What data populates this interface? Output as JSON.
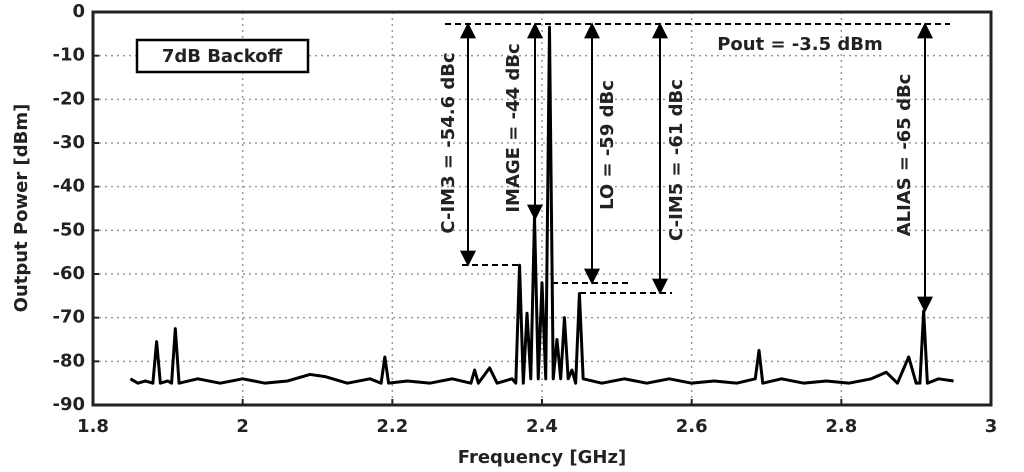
{
  "chart_data": {
    "type": "line",
    "x_label": "Frequency [GHz]",
    "y_label": "Output Power [dBm]",
    "xlim": [
      1.8,
      3
    ],
    "xticks": [
      1.8,
      2,
      2.2,
      2.4,
      2.6,
      2.8,
      3
    ],
    "ylim": [
      -90,
      0
    ],
    "yticks": [
      0,
      -10,
      -20,
      -30,
      -40,
      -50,
      -60,
      -70,
      -80,
      -90
    ],
    "grid": true,
    "annotations": [
      "7dB Backoff",
      "Pout = -3.5 dBm",
      "C-IM3 = -54.6 dBc",
      "IMAGE = -44 dBc",
      "LO = -59 dBc",
      "C-IM5 = -61 dBc",
      "ALIAS = -65 dBc"
    ],
    "series": [
      {
        "color": "#000000",
        "x": [
          1.85,
          1.86,
          1.87,
          1.88,
          1.885,
          1.89,
          1.9,
          1.905,
          1.91,
          1.915,
          1.94,
          1.97,
          2.0,
          2.03,
          2.06,
          2.09,
          2.11,
          2.14,
          2.17,
          2.185,
          2.19,
          2.195,
          2.22,
          2.25,
          2.28,
          2.305,
          2.31,
          2.315,
          2.33,
          2.34,
          2.36,
          2.365,
          2.37,
          2.375,
          2.38,
          2.385,
          2.39,
          2.395,
          2.4,
          2.405,
          2.41,
          2.415,
          2.42,
          2.425,
          2.43,
          2.435,
          2.44,
          2.445,
          2.45,
          2.455,
          2.48,
          2.51,
          2.54,
          2.57,
          2.6,
          2.63,
          2.66,
          2.685,
          2.69,
          2.695,
          2.72,
          2.75,
          2.78,
          2.81,
          2.84,
          2.86,
          2.875,
          2.89,
          2.9,
          2.905,
          2.91,
          2.915,
          2.93,
          2.95
        ],
        "values": [
          -84,
          -85,
          -84.5,
          -85,
          -75.5,
          -85,
          -84.5,
          -85,
          -72.5,
          -85,
          -84,
          -85,
          -84,
          -85,
          -84.5,
          -83,
          -83.5,
          -85,
          -84,
          -85,
          -79,
          -85,
          -84.5,
          -85,
          -84,
          -85,
          -82,
          -85,
          -81.5,
          -85,
          -84,
          -85,
          -58,
          -85,
          -69,
          -84,
          -47,
          -84,
          -62,
          -84,
          -3.5,
          -84,
          -75,
          -84,
          -70,
          -84,
          -82,
          -85,
          -64.5,
          -84,
          -85,
          -84,
          -85,
          -84,
          -85,
          -84.5,
          -85,
          -84,
          -77.5,
          -85,
          -84,
          -85,
          -84.5,
          -85,
          -84,
          -82.5,
          -85,
          -79,
          -85,
          -85,
          -68.5,
          -85,
          -84,
          -84.5
        ]
      }
    ]
  }
}
